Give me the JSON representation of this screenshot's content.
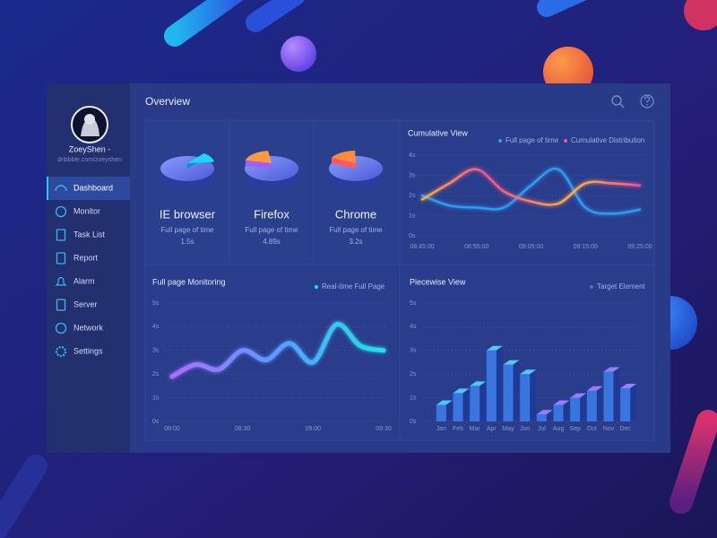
{
  "sidebar": {
    "user": {
      "name": "ZoeyShen -",
      "link": "dribbble.com/zoeyshen"
    },
    "menu": [
      "Dashboard",
      "Monitor",
      "Task List",
      "Report",
      "Alarm",
      "Server",
      "Network",
      "Settings"
    ],
    "active": 0
  },
  "header": {
    "title": "Overview"
  },
  "browsers": [
    {
      "name": "IE browser",
      "metric": "Full page of time",
      "value": "1.5s"
    },
    {
      "name": "Firefox",
      "metric": "Full page of time",
      "value": "4.89s"
    },
    {
      "name": "Chrome",
      "metric": "Full page of time",
      "value": "3.2s"
    }
  ],
  "chart_data": [
    {
      "type": "line",
      "title": "Cumulative View",
      "categories": [
        "08:45:00",
        null,
        "08:55:00",
        null,
        "09:05:00",
        null,
        "09:15:00",
        null,
        "09:25:00"
      ],
      "series": [
        {
          "name": "Full page of time",
          "color": "#2f9cf5",
          "values": [
            2.0,
            1.5,
            1.4,
            1.4,
            2.5,
            3.3,
            1.4,
            1.1,
            1.3
          ]
        },
        {
          "name": "Cumulative Distribution",
          "color": "#ff4f8b",
          "values": [
            1.8,
            2.6,
            3.3,
            2.2,
            1.7,
            1.6,
            2.6,
            2.6,
            2.5
          ]
        }
      ],
      "ylim": [
        0,
        4
      ],
      "yticks": [
        {
          "value": 0,
          "label": "0s"
        },
        {
          "value": 1,
          "label": "1s"
        },
        {
          "value": 2,
          "label": "2s"
        },
        {
          "value": 3,
          "label": "3s"
        },
        {
          "value": 4,
          "label": "4s"
        }
      ],
      "grid": true
    },
    {
      "type": "line",
      "title": "Full page Monitoring",
      "categories": [
        "08:00",
        null,
        null,
        "08:30",
        null,
        null,
        "09:00",
        null,
        null,
        "09:30"
      ],
      "series": [
        {
          "name": "Real-time Full Page",
          "color": "#1ee3e8",
          "values": [
            1.9,
            2.4,
            2.2,
            3.0,
            2.6,
            3.3,
            2.5,
            4.1,
            3.2,
            3.0
          ]
        }
      ],
      "ylim": [
        0,
        5
      ],
      "yticks": [
        {
          "value": 0,
          "label": "0s"
        },
        {
          "value": 1,
          "label": "1s"
        },
        {
          "value": 2,
          "label": "2s"
        },
        {
          "value": 3,
          "label": "3s"
        },
        {
          "value": 4,
          "label": "4s"
        },
        {
          "value": 5,
          "label": "5s"
        }
      ],
      "grid": true
    },
    {
      "type": "bar3d",
      "title": "Piecewise View",
      "categories": [
        "Jan",
        "Feb",
        "Mar",
        "Apr",
        "May",
        "Jun",
        "Jul",
        "Aug",
        "Sep",
        "Oct",
        "Nov",
        "Dec"
      ],
      "series": [
        {
          "name": "Target Element",
          "color": "#3a74de",
          "values": [
            0.7,
            1.2,
            1.5,
            3.0,
            2.4,
            2.0,
            0.3,
            0.7,
            1.0,
            1.3,
            2.1,
            1.4
          ]
        }
      ],
      "ylim": [
        0,
        5
      ],
      "yticks": [
        {
          "value": 0,
          "label": "0s"
        },
        {
          "value": 1,
          "label": "1s"
        },
        {
          "value": 2,
          "label": "2s"
        },
        {
          "value": 3,
          "label": "3s"
        },
        {
          "value": 4,
          "label": "4s"
        },
        {
          "value": 5,
          "label": "5s"
        }
      ],
      "grid": true
    }
  ]
}
